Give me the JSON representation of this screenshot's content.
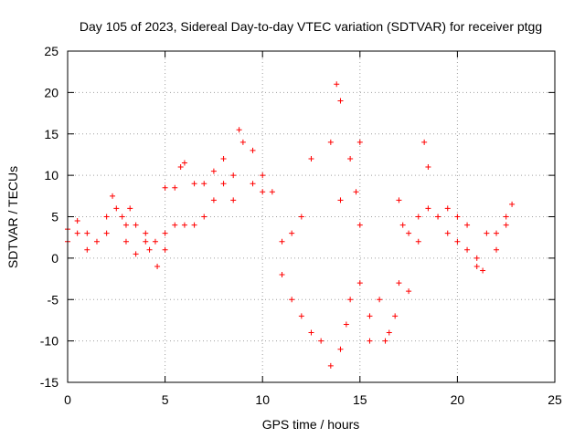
{
  "chart_data": {
    "type": "scatter",
    "title": "Day 105 of 2023, Sidereal Day-to-day VTEC variation (SDTVAR) for receiver ptgg",
    "xlabel": "GPS time / hours",
    "ylabel": "SDTVAR / TECUs",
    "xlim": [
      0,
      25
    ],
    "ylim": [
      -15,
      25
    ],
    "xticks": [
      "0",
      "5",
      "10",
      "15",
      "20",
      "25"
    ],
    "yticks": [
      "-15",
      "-10",
      "-5",
      "0",
      "5",
      "10",
      "15",
      "20",
      "25"
    ],
    "grid": true,
    "marker": "plus",
    "color": "#ff0000",
    "series": [
      {
        "values": [
          [
            0,
            2
          ],
          [
            0,
            3.5
          ],
          [
            0.5,
            4.5
          ],
          [
            0.5,
            3
          ],
          [
            1,
            3
          ],
          [
            1,
            1
          ],
          [
            1.5,
            2
          ],
          [
            2,
            3
          ],
          [
            2,
            5
          ],
          [
            2.3,
            7.5
          ],
          [
            2.5,
            6
          ],
          [
            2.8,
            5
          ],
          [
            3,
            4
          ],
          [
            3,
            2
          ],
          [
            3.2,
            6
          ],
          [
            3.5,
            4
          ],
          [
            3.5,
            0.5
          ],
          [
            4,
            2
          ],
          [
            4,
            3
          ],
          [
            4.2,
            1
          ],
          [
            4.5,
            2
          ],
          [
            4.6,
            -1
          ],
          [
            5,
            3
          ],
          [
            5,
            1
          ],
          [
            5,
            8.5
          ],
          [
            5.5,
            4
          ],
          [
            5.5,
            8.5
          ],
          [
            5.8,
            11
          ],
          [
            6,
            11.5
          ],
          [
            6,
            4
          ],
          [
            6.5,
            4
          ],
          [
            6.5,
            9
          ],
          [
            7,
            5
          ],
          [
            7,
            9
          ],
          [
            7.5,
            10.5
          ],
          [
            7.5,
            7
          ],
          [
            8,
            12
          ],
          [
            8,
            9
          ],
          [
            8.5,
            10
          ],
          [
            8.5,
            7
          ],
          [
            8.8,
            15.5
          ],
          [
            9,
            14
          ],
          [
            9.5,
            13
          ],
          [
            9.5,
            9
          ],
          [
            10,
            10
          ],
          [
            10,
            8
          ],
          [
            10.5,
            8
          ],
          [
            11,
            2
          ],
          [
            11,
            -2
          ],
          [
            11.5,
            3
          ],
          [
            11.5,
            -5
          ],
          [
            12,
            -7
          ],
          [
            12,
            5
          ],
          [
            12.5,
            -9
          ],
          [
            12.5,
            12
          ],
          [
            13,
            -10
          ],
          [
            13.5,
            -13
          ],
          [
            13.5,
            14
          ],
          [
            13.8,
            21
          ],
          [
            14,
            19
          ],
          [
            14,
            7
          ],
          [
            14,
            -11
          ],
          [
            14.3,
            -8
          ],
          [
            14.5,
            -5
          ],
          [
            14.5,
            12
          ],
          [
            14.8,
            8
          ],
          [
            15,
            4
          ],
          [
            15,
            -3
          ],
          [
            15,
            14
          ],
          [
            15.5,
            -7
          ],
          [
            15.5,
            -10
          ],
          [
            16,
            -5
          ],
          [
            16.3,
            -10
          ],
          [
            16.5,
            -9
          ],
          [
            16.8,
            -7
          ],
          [
            17,
            -3
          ],
          [
            17,
            7
          ],
          [
            17.2,
            4
          ],
          [
            17.5,
            -4
          ],
          [
            17.5,
            3
          ],
          [
            18,
            5
          ],
          [
            18,
            2
          ],
          [
            18.3,
            14
          ],
          [
            18.5,
            11
          ],
          [
            18.5,
            6
          ],
          [
            19,
            5
          ],
          [
            19,
            5
          ],
          [
            19.5,
            6
          ],
          [
            19.5,
            3
          ],
          [
            20,
            5
          ],
          [
            20,
            2
          ],
          [
            20.5,
            1
          ],
          [
            20.5,
            4
          ],
          [
            21,
            0
          ],
          [
            21,
            -1
          ],
          [
            21.3,
            -1.5
          ],
          [
            21.5,
            3
          ],
          [
            22,
            3
          ],
          [
            22,
            1
          ],
          [
            22.5,
            5
          ],
          [
            22.5,
            4
          ],
          [
            22.8,
            6.5
          ]
        ]
      }
    ]
  }
}
